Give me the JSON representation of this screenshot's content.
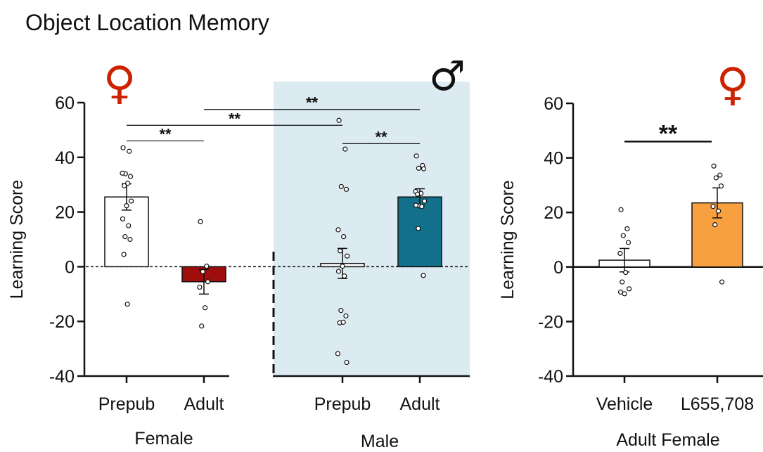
{
  "figure": {
    "title": "Object Location Memory"
  },
  "chart_data": [
    {
      "type": "bar",
      "panel": "left",
      "ylabel": "Learning Score",
      "ylim": [
        -40,
        60
      ],
      "yticks": [
        -40,
        -20,
        0,
        20,
        40,
        60
      ],
      "groups": [
        {
          "label": "Female",
          "symbol": "♀",
          "symbol_color": "#cc2200"
        },
        {
          "label": "Male",
          "symbol": "♂",
          "symbol_color": "#111111",
          "shaded": true,
          "shade_color": "#dcebf2"
        }
      ],
      "bars": [
        {
          "category": "Prepub",
          "group": "Female",
          "mean": 25.5,
          "sem": 4.8,
          "color": "#ffffff",
          "points": [
            43.5,
            42.2,
            34,
            33,
            34.2,
            30.5,
            29.6,
            24,
            22.3,
            17.5,
            15,
            11,
            10,
            4.5,
            -13.7
          ]
        },
        {
          "category": "Adult",
          "group": "Female",
          "mean": -5.5,
          "sem": 4.5,
          "color": "#a00d0d",
          "points": [
            16.5,
            0.2,
            -1.8,
            -5.5,
            -7.5,
            -15,
            -21.7
          ]
        },
        {
          "category": "Prepub",
          "group": "Male",
          "mean": 1.2,
          "sem": 5.5,
          "color": "#ffffff",
          "points": [
            53.5,
            43,
            29.3,
            28.3,
            13.5,
            11,
            5.8,
            3.9,
            0.2,
            -1.7,
            -3.4,
            -16,
            -18,
            -20.5,
            -20.3,
            -31.8,
            -35
          ]
        },
        {
          "category": "Adult",
          "group": "Male",
          "mean": 25.5,
          "sem": 3,
          "color": "#13708a",
          "points": [
            40.5,
            37,
            36,
            35.8,
            27.5,
            26.8,
            26.5,
            24,
            22.2,
            22.5,
            22,
            14,
            -3.2
          ]
        }
      ],
      "significance": [
        {
          "from": "Female Prepub",
          "to": "Female Adult",
          "label": "**",
          "y": 46
        },
        {
          "from": "Female Prepub",
          "to": "Male Prepub",
          "label": "**",
          "y": 51.7
        },
        {
          "from": "Female Adult",
          "to": "Male Adult",
          "label": "**",
          "y": 57.5
        },
        {
          "from": "Male Prepub",
          "to": "Male Adult",
          "label": "**",
          "y": 45
        }
      ]
    },
    {
      "type": "bar",
      "panel": "right",
      "ylabel": "Learning Score",
      "xlabel": "Adult Female",
      "symbol": "♀",
      "symbol_color": "#cc2200",
      "ylim": [
        -40,
        60
      ],
      "yticks": [
        -40,
        -20,
        0,
        20,
        40,
        60
      ],
      "bars": [
        {
          "category": "Vehicle",
          "mean": 2.5,
          "sem": 4.3,
          "color": "#ffffff",
          "points": [
            21,
            14,
            11.5,
            9,
            5,
            -2,
            -5.5,
            -8,
            -9.8,
            -9.2
          ]
        },
        {
          "category": "L655,708",
          "mean": 23.5,
          "sem": 5.5,
          "color": "#f7a040",
          "points": [
            37,
            33.7,
            32.7,
            29.7,
            22.2,
            20.5,
            15.5,
            -5.5
          ]
        }
      ],
      "significance": [
        {
          "from": "Vehicle",
          "to": "L655,708",
          "label": "**",
          "y": 46
        }
      ]
    }
  ]
}
